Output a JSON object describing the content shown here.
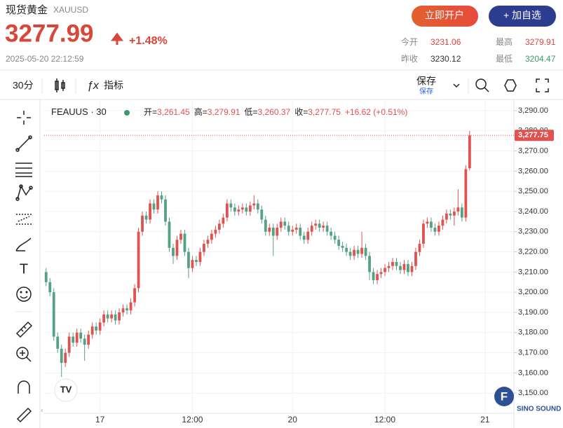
{
  "header": {
    "title": "现货黄金",
    "symbol": "XAUUSD",
    "price": "3277.99",
    "change": "+1.48%",
    "timestamp": "2025-05-20 22:12:59"
  },
  "buttons": {
    "open_account": "立即开户",
    "add_watchlist": "+ 加自选"
  },
  "stats": [
    {
      "label": "今开",
      "value": "3231.06"
    },
    {
      "label": "最高",
      "value": "3279.91"
    },
    {
      "label": "昨收",
      "value": "3230.12"
    },
    {
      "label": "最低",
      "value": "3204.47"
    }
  ],
  "toolbar": {
    "interval": "30分",
    "indicators": "指标",
    "save": "保存",
    "save_sub": "保存"
  },
  "watermark": "SINO SOUND",
  "chart_data": {
    "type": "candlestick",
    "legend_symbol": "FEAUUS · 30",
    "legend_values": [
      {
        "label": "开=",
        "value": "3,261.45"
      },
      {
        "label": "高=",
        "value": "3,279.91"
      },
      {
        "label": "低=",
        "value": "3,260.37"
      },
      {
        "label": "收=",
        "value": "3,277.75"
      },
      {
        "label": "",
        "value": "+16.62 (+0.51%)"
      }
    ],
    "up_color": "#e0524f",
    "down_color": "#54a183",
    "grid": true,
    "xlim": [
      -0.5,
      121.5
    ],
    "xticks": [
      {
        "value": 14,
        "label": "17"
      },
      {
        "value": 38,
        "label": "12:00"
      },
      {
        "value": 64,
        "label": "20"
      },
      {
        "value": 88,
        "label": "12:00"
      },
      {
        "value": 114,
        "label": "21"
      }
    ],
    "ylim": [
      3140,
      3294.5
    ],
    "yticks": [
      {
        "value": 3150,
        "label": "3,150.00"
      },
      {
        "value": 3160,
        "label": "3,160.00"
      },
      {
        "value": 3170,
        "label": "3,170.00"
      },
      {
        "value": 3180,
        "label": "3,180.00"
      },
      {
        "value": 3190,
        "label": "3,190.00"
      },
      {
        "value": 3200,
        "label": "3,200.00"
      },
      {
        "value": 3210,
        "label": "3,210.00"
      },
      {
        "value": 3220,
        "label": "3,220.00"
      },
      {
        "value": 3230,
        "label": "3,230.00"
      },
      {
        "value": 3240,
        "label": "3,240.00"
      },
      {
        "value": 3250,
        "label": "3,250.00"
      },
      {
        "value": 3260,
        "label": "3,260.00"
      },
      {
        "value": 3270,
        "label": "3,270.00"
      },
      {
        "value": 3280,
        "label": "3,280.00"
      },
      {
        "value": 3290,
        "label": "3,290.00"
      }
    ],
    "last_price": {
      "value": 3277.75,
      "label": "3,277.75"
    },
    "candles": [
      [
        3210,
        3212,
        3203,
        3205
      ],
      [
        3205,
        3207,
        3198,
        3200
      ],
      [
        3200,
        3202,
        3176,
        3178
      ],
      [
        3178,
        3180,
        3170,
        3172
      ],
      [
        3172,
        3174,
        3158,
        3165
      ],
      [
        3165,
        3172,
        3163,
        3170
      ],
      [
        3170,
        3180,
        3168,
        3178
      ],
      [
        3178,
        3180,
        3173,
        3175
      ],
      [
        3175,
        3182,
        3173,
        3180
      ],
      [
        3180,
        3182,
        3175,
        3177
      ],
      [
        3177,
        3179,
        3166,
        3174
      ],
      [
        3174,
        3181,
        3172,
        3179
      ],
      [
        3179,
        3185,
        3177,
        3183
      ],
      [
        3183,
        3185,
        3179,
        3181
      ],
      [
        3181,
        3187,
        3179,
        3185
      ],
      [
        3185,
        3191,
        3183,
        3189
      ],
      [
        3189,
        3191,
        3185,
        3187
      ],
      [
        3187,
        3191,
        3185,
        3189
      ],
      [
        3189,
        3191,
        3184,
        3186
      ],
      [
        3186,
        3192,
        3184,
        3190
      ],
      [
        3190,
        3194,
        3188,
        3192
      ],
      [
        3192,
        3194,
        3189,
        3191
      ],
      [
        3191,
        3197,
        3189,
        3195
      ],
      [
        3195,
        3204,
        3193,
        3202
      ],
      [
        3202,
        3232,
        3200,
        3230
      ],
      [
        3230,
        3240,
        3228,
        3238
      ],
      [
        3238,
        3240,
        3234,
        3236
      ],
      [
        3236,
        3246,
        3234,
        3244
      ],
      [
        3244,
        3246,
        3239,
        3241
      ],
      [
        3241,
        3250,
        3239,
        3248
      ],
      [
        3248,
        3250,
        3244,
        3246
      ],
      [
        3246,
        3248,
        3233,
        3235
      ],
      [
        3235,
        3237,
        3220,
        3222
      ],
      [
        3222,
        3224,
        3214,
        3218
      ],
      [
        3218,
        3228,
        3216,
        3226
      ],
      [
        3226,
        3231,
        3224,
        3229
      ],
      [
        3229,
        3231,
        3218,
        3220
      ],
      [
        3220,
        3222,
        3207,
        3212
      ],
      [
        3212,
        3218,
        3210,
        3216
      ],
      [
        3216,
        3218,
        3213,
        3215
      ],
      [
        3215,
        3222,
        3213,
        3220
      ],
      [
        3220,
        3226,
        3218,
        3224
      ],
      [
        3224,
        3228,
        3222,
        3226
      ],
      [
        3226,
        3231,
        3224,
        3229
      ],
      [
        3229,
        3233,
        3227,
        3231
      ],
      [
        3231,
        3236,
        3229,
        3234
      ],
      [
        3234,
        3239,
        3232,
        3237
      ],
      [
        3237,
        3246,
        3235,
        3244
      ],
      [
        3244,
        3246,
        3240,
        3242
      ],
      [
        3242,
        3244,
        3238,
        3240
      ],
      [
        3240,
        3243,
        3238,
        3241
      ],
      [
        3241,
        3244,
        3239,
        3242
      ],
      [
        3242,
        3244,
        3238,
        3240
      ],
      [
        3240,
        3245,
        3238,
        3243
      ],
      [
        3243,
        3248,
        3241,
        3244
      ],
      [
        3244,
        3246,
        3239,
        3241
      ],
      [
        3241,
        3243,
        3234,
        3236
      ],
      [
        3236,
        3238,
        3228,
        3230
      ],
      [
        3230,
        3234,
        3228,
        3232
      ],
      [
        3232,
        3234,
        3218,
        3228
      ],
      [
        3228,
        3234,
        3226,
        3232
      ],
      [
        3232,
        3237,
        3230,
        3235
      ],
      [
        3235,
        3237,
        3231,
        3233
      ],
      [
        3233,
        3235,
        3228,
        3230
      ],
      [
        3230,
        3233,
        3228,
        3231
      ],
      [
        3231,
        3234,
        3229,
        3232
      ],
      [
        3232,
        3234,
        3226,
        3228
      ],
      [
        3228,
        3230,
        3224,
        3226
      ],
      [
        3226,
        3232,
        3224,
        3230
      ],
      [
        3230,
        3235,
        3228,
        3233
      ],
      [
        3233,
        3236,
        3231,
        3234
      ],
      [
        3234,
        3236,
        3230,
        3232
      ],
      [
        3232,
        3235,
        3230,
        3233
      ],
      [
        3233,
        3235,
        3228,
        3230
      ],
      [
        3230,
        3232,
        3226,
        3228
      ],
      [
        3228,
        3230,
        3224,
        3226
      ],
      [
        3226,
        3228,
        3221,
        3223
      ],
      [
        3223,
        3225,
        3220,
        3222
      ],
      [
        3222,
        3224,
        3218,
        3220
      ],
      [
        3220,
        3222,
        3216,
        3218
      ],
      [
        3218,
        3223,
        3216,
        3221
      ],
      [
        3221,
        3223,
        3217,
        3219
      ],
      [
        3219,
        3230,
        3217,
        3222
      ],
      [
        3222,
        3224,
        3216,
        3218
      ],
      [
        3218,
        3220,
        3206,
        3210
      ],
      [
        3210,
        3212,
        3204,
        3206
      ],
      [
        3206,
        3211,
        3204,
        3209
      ],
      [
        3209,
        3212,
        3207,
        3210
      ],
      [
        3210,
        3214,
        3208,
        3212
      ],
      [
        3212,
        3215,
        3210,
        3213
      ],
      [
        3213,
        3217,
        3211,
        3215
      ],
      [
        3215,
        3217,
        3211,
        3213
      ],
      [
        3213,
        3215,
        3209,
        3211
      ],
      [
        3211,
        3216,
        3209,
        3214
      ],
      [
        3214,
        3216,
        3208,
        3210
      ],
      [
        3210,
        3215,
        3208,
        3213
      ],
      [
        3213,
        3222,
        3211,
        3220
      ],
      [
        3220,
        3226,
        3218,
        3224
      ],
      [
        3224,
        3236,
        3222,
        3234
      ],
      [
        3234,
        3237,
        3232,
        3235
      ],
      [
        3235,
        3237,
        3230,
        3232
      ],
      [
        3232,
        3234,
        3228,
        3230
      ],
      [
        3230,
        3235,
        3228,
        3233
      ],
      [
        3233,
        3238,
        3231,
        3236
      ],
      [
        3236,
        3241,
        3234,
        3239
      ],
      [
        3239,
        3241,
        3236,
        3238
      ],
      [
        3238,
        3242,
        3233,
        3240
      ],
      [
        3240,
        3251,
        3238,
        3242
      ],
      [
        3242,
        3244,
        3235,
        3237
      ],
      [
        3237,
        3263,
        3235,
        3261
      ],
      [
        3261.45,
        3279.91,
        3260.37,
        3277.75
      ]
    ]
  }
}
